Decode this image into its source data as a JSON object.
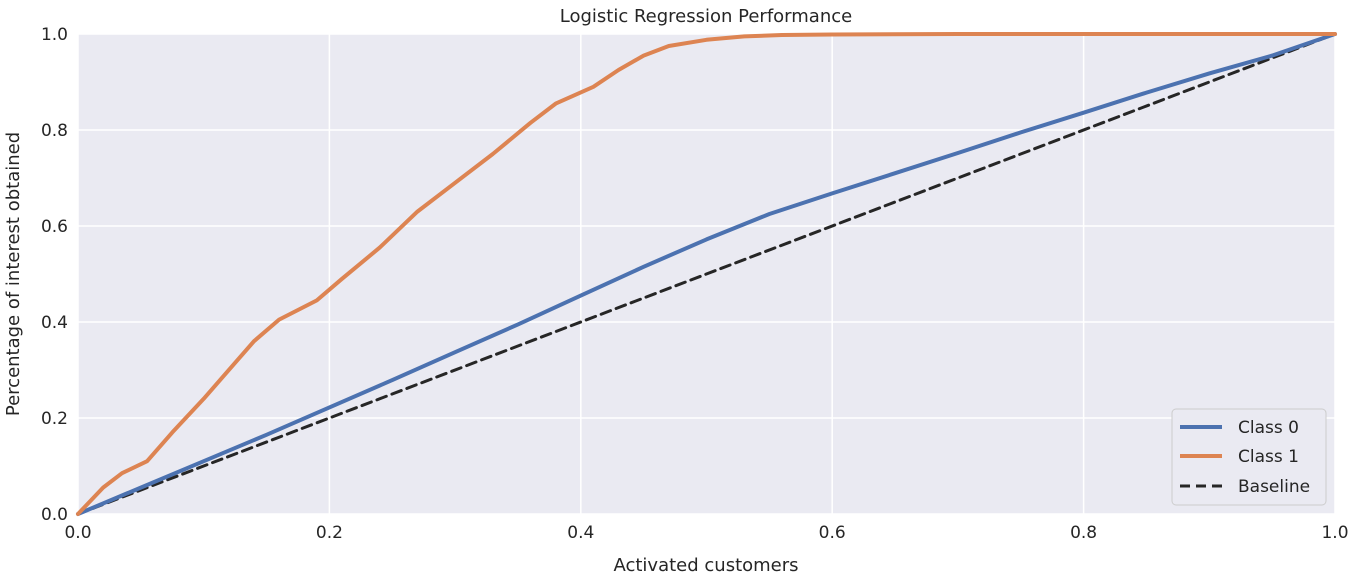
{
  "chart_data": {
    "type": "line",
    "title": "Logistic Regression Performance",
    "xlabel": "Activated customers",
    "ylabel": "Percentage of interest obtained",
    "xlim": [
      0.0,
      1.0
    ],
    "ylim": [
      0.0,
      1.0
    ],
    "xticks": [
      "0.0",
      "0.2",
      "0.4",
      "0.6",
      "0.8",
      "1.0"
    ],
    "yticks": [
      "0.0",
      "0.2",
      "0.4",
      "0.6",
      "0.8",
      "1.0"
    ],
    "grid": true,
    "background": "#eaeaf2",
    "legend_position": "lower-right",
    "series": [
      {
        "name": "Class 0",
        "color": "#4c72b0",
        "style": "solid",
        "x": [
          0.0,
          0.05,
          0.1,
          0.15,
          0.2,
          0.25,
          0.3,
          0.35,
          0.4,
          0.45,
          0.5,
          0.55,
          0.6,
          0.65,
          0.7,
          0.75,
          0.8,
          0.85,
          0.9,
          0.95,
          1.0
        ],
        "y": [
          0.0,
          0.055,
          0.11,
          0.165,
          0.222,
          0.279,
          0.337,
          0.395,
          0.455,
          0.515,
          0.572,
          0.625,
          0.668,
          0.71,
          0.752,
          0.795,
          0.836,
          0.878,
          0.918,
          0.955,
          1.0
        ]
      },
      {
        "name": "Class 1",
        "color": "#dd8452",
        "style": "solid",
        "x": [
          0.0,
          0.02,
          0.035,
          0.055,
          0.075,
          0.1,
          0.125,
          0.14,
          0.16,
          0.19,
          0.21,
          0.24,
          0.27,
          0.3,
          0.33,
          0.36,
          0.38,
          0.41,
          0.43,
          0.45,
          0.47,
          0.5,
          0.53,
          0.56,
          0.6,
          0.7,
          0.8,
          0.9,
          1.0
        ],
        "y": [
          0.0,
          0.055,
          0.085,
          0.11,
          0.17,
          0.24,
          0.315,
          0.36,
          0.405,
          0.445,
          0.49,
          0.555,
          0.63,
          0.69,
          0.75,
          0.815,
          0.855,
          0.89,
          0.925,
          0.955,
          0.975,
          0.988,
          0.995,
          0.998,
          0.999,
          1.0,
          1.0,
          1.0,
          1.0
        ]
      },
      {
        "name": "Baseline",
        "color": "#262626",
        "style": "dashed",
        "x": [
          0.0,
          1.0
        ],
        "y": [
          0.0,
          1.0
        ]
      }
    ]
  }
}
